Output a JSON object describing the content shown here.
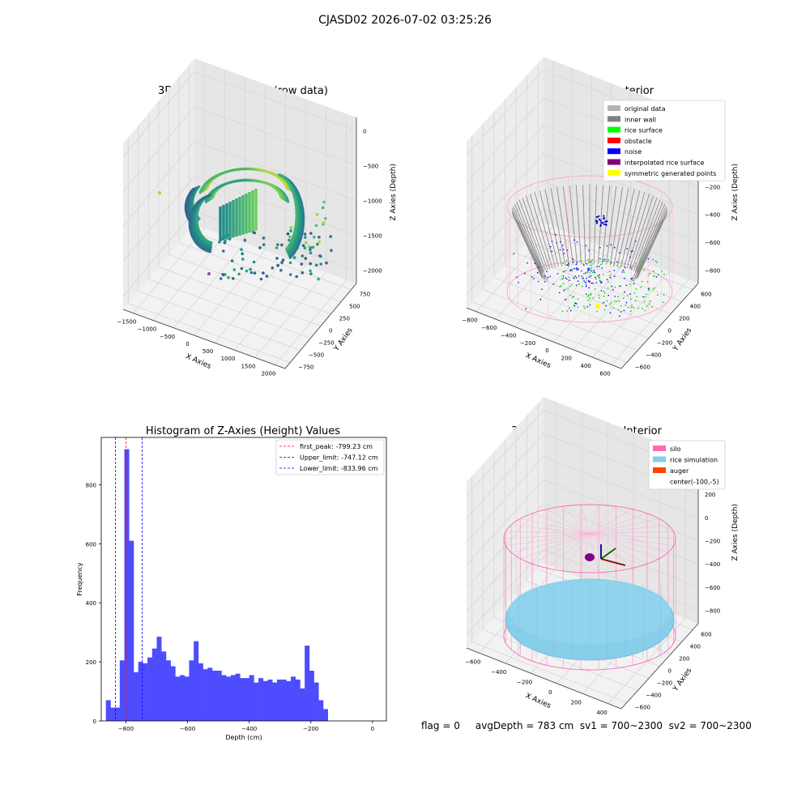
{
  "suptitle": "CJASD02 2026-07-02 03:25:26",
  "status_line": "flag = 0     avgDepth = 783 cm  sv1 = 700~2300  sv2 = 700~2300",
  "chart_data": [
    {
      "type": "scatter",
      "dim": "3d",
      "title": "3D Plot of Silo Interior(row data)",
      "xlabel": "X Axies",
      "ylabel": "Y Axies",
      "zlabel": "Z Axies (Depth)",
      "x_ticks": [
        "−1500",
        "−1000",
        "−500",
        "0",
        "500",
        "1000",
        "1500",
        "2000"
      ],
      "y_ticks": [
        "−750",
        "−500",
        "−250",
        "0",
        "250",
        "500",
        "750"
      ],
      "z_ticks": [
        "0",
        "−500",
        "−1000",
        "−1500",
        "−2000"
      ],
      "colormap": "viridis"
    },
    {
      "type": "scatter",
      "dim": "3d",
      "title": "3D classify of Silo Interior",
      "xlabel": "X Axies",
      "ylabel": "Y Axies",
      "zlabel": "Z Axies (Depth)",
      "x_ticks": [
        "−800",
        "−600",
        "−400",
        "−200",
        "0",
        "200",
        "400",
        "600"
      ],
      "y_ticks": [
        "−600",
        "−400",
        "−200",
        "0",
        "200",
        "400",
        "600"
      ],
      "z_ticks": [
        "200",
        "0",
        "−200",
        "−400",
        "−600",
        "−800"
      ],
      "legend_position": "top-right",
      "legend": [
        {
          "label": "original data",
          "color": "#b4b4b4"
        },
        {
          "label": "inner wall",
          "color": "#808080"
        },
        {
          "label": "rice surface",
          "color": "#00ff00"
        },
        {
          "label": "obstacle",
          "color": "#ff0000"
        },
        {
          "label": "noise",
          "color": "#0000ff"
        },
        {
          "label": "interpolated rice surface",
          "color": "#800080"
        },
        {
          "label": "symmetric generated points",
          "color": "#ffff00"
        }
      ]
    },
    {
      "type": "bar",
      "title": "Histogram of Z-Axies (Height) Values",
      "xlabel": "Depth (cm)",
      "ylabel": "Frequency",
      "bar_color": "#4d4dff",
      "bin_start": -865,
      "bin_width": 15,
      "counts": [
        70,
        45,
        45,
        205,
        920,
        610,
        165,
        200,
        195,
        215,
        245,
        285,
        235,
        205,
        185,
        150,
        155,
        150,
        205,
        270,
        195,
        175,
        180,
        170,
        170,
        155,
        150,
        155,
        160,
        145,
        145,
        155,
        130,
        145,
        135,
        140,
        130,
        140,
        140,
        135,
        150,
        140,
        110,
        255,
        170,
        130,
        70,
        40
      ],
      "xlim": [
        -880,
        45
      ],
      "ylim": [
        0,
        960
      ],
      "x_ticks": [
        {
          "value": -800,
          "label": "−800"
        },
        {
          "value": -600,
          "label": "−600"
        },
        {
          "value": -400,
          "label": "−400"
        },
        {
          "value": -200,
          "label": "−200"
        },
        {
          "value": 0,
          "label": "0"
        }
      ],
      "y_ticks": [
        {
          "value": 0,
          "label": "0"
        },
        {
          "value": 200,
          "label": "200"
        },
        {
          "value": 400,
          "label": "400"
        },
        {
          "value": 600,
          "label": "600"
        },
        {
          "value": 800,
          "label": "800"
        }
      ],
      "vlines": [
        {
          "value": -799.23,
          "color": "#ff0000",
          "label": "first_peak: -799.23 cm"
        },
        {
          "value": -747.12,
          "color": "#0000ff",
          "label": "Upper_limit: -747.12 cm"
        },
        {
          "value": -833.96,
          "color": "#0000ff",
          "label": "Lower_limit: -833.96 cm"
        }
      ],
      "legend_position": "top-right"
    },
    {
      "type": "scatter",
      "dim": "3d",
      "title": "3D simulation of Silo Interior",
      "xlabel": "X Axies",
      "ylabel": "Y Axies",
      "zlabel": "Z Axies (Depth)",
      "x_ticks": [
        "−600",
        "−400",
        "−200",
        "0",
        "200",
        "400"
      ],
      "y_ticks": [
        "−600",
        "−400",
        "−200",
        "0",
        "200",
        "400",
        "600"
      ],
      "z_ticks": [
        "400",
        "200",
        "0",
        "−200",
        "−400",
        "−600",
        "−800"
      ],
      "legend_position": "top-right",
      "legend": [
        {
          "label": "silo",
          "color": "#ff69b4"
        },
        {
          "label": "rice simulation",
          "color": "#87ceeb"
        },
        {
          "label": "auger",
          "color": "#ff4500"
        },
        {
          "label": "center(-100,-5)",
          "color": ""
        }
      ]
    }
  ]
}
